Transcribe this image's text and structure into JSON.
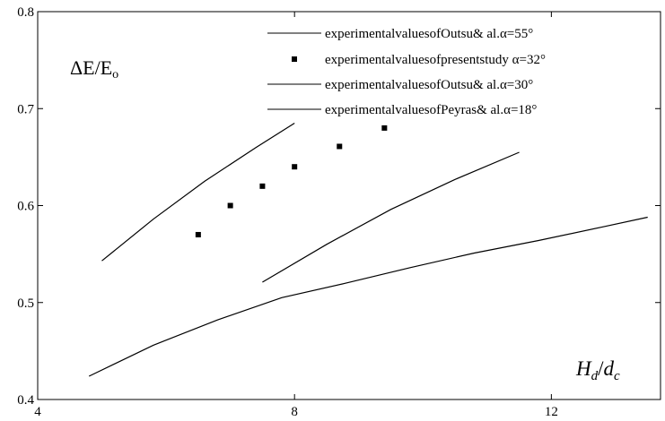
{
  "chart_data": {
    "type": "line",
    "xlim": [
      4,
      13.7
    ],
    "ylim": [
      0.4,
      0.8
    ],
    "x_ticks": [
      4,
      8,
      12
    ],
    "y_ticks": [
      0.4,
      0.5,
      0.6,
      0.7,
      0.8
    ],
    "x_tick_labels": [
      "4",
      "8",
      "12"
    ],
    "y_tick_labels": [
      "0.4",
      "0.5",
      "0.6",
      "0.7",
      "0.8"
    ],
    "grid": false,
    "legend_position": "top-right",
    "annotations": {
      "ylabel_text": "ΔE/E",
      "ylabel_sub": "o",
      "xlabel_H": "H",
      "xlabel_H_sub": "d",
      "xlabel_slash": "/",
      "xlabel_d": "d",
      "xlabel_d_sub": "c"
    },
    "series": [
      {
        "name": "experimentalvaluesofOutsu& al.α=55°",
        "style": "line",
        "x": [
          5.0,
          5.8,
          6.6,
          7.4,
          8.0
        ],
        "y": [
          0.543,
          0.586,
          0.625,
          0.66,
          0.685
        ]
      },
      {
        "name": "experimentalvaluesofpresentstudy α=32°",
        "style": "marker",
        "x": [
          6.5,
          7.0,
          7.5,
          8.0,
          8.7,
          9.4
        ],
        "y": [
          0.57,
          0.6,
          0.62,
          0.64,
          0.661,
          0.68
        ]
      },
      {
        "name": "experimentalvaluesofOutsu& al.α=30°",
        "style": "line",
        "x": [
          7.5,
          8.5,
          9.5,
          10.5,
          11.5
        ],
        "y": [
          0.521,
          0.56,
          0.596,
          0.627,
          0.655
        ]
      },
      {
        "name": "experimentalvaluesofPeyras& al.α=18°",
        "style": "line",
        "x": [
          4.8,
          5.8,
          6.8,
          7.8,
          8.8,
          9.8,
          10.8,
          11.8,
          12.8,
          13.5
        ],
        "y": [
          0.424,
          0.456,
          0.482,
          0.505,
          0.52,
          0.536,
          0.551,
          0.564,
          0.578,
          0.588
        ]
      }
    ]
  }
}
